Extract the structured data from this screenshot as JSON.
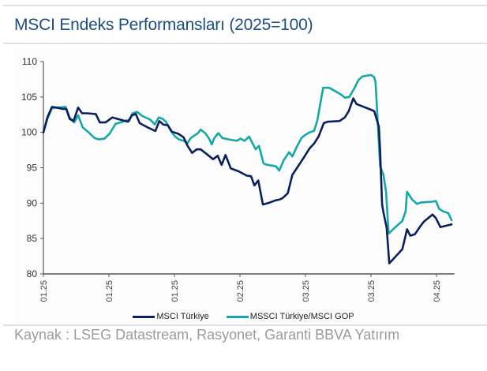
{
  "header": {
    "title": "MSCI Endeks Performansları (2025=100)"
  },
  "source": {
    "text": "Kaynak : LSEG Datastream, Rasyonet, Garanti BBVA Yatırım"
  },
  "colors": {
    "series_dark": "#0c1f5e",
    "series_teal": "#16a8a8",
    "axis": "#555555",
    "title": "#1d4d84"
  },
  "chart_data": {
    "type": "line",
    "title": "MSCI Endeks Performansları (2025=100)",
    "xlabel": "",
    "ylabel": "",
    "ylim": [
      80,
      110
    ],
    "yticks": [
      80,
      85,
      90,
      95,
      100,
      105,
      110
    ],
    "xlim": [
      0,
      6.25
    ],
    "xticks": [
      0,
      1,
      2,
      3,
      4,
      5,
      6
    ],
    "xtick_labels": [
      "01.25",
      "01.25",
      "01.25",
      "02.25",
      "03.25",
      "03.25",
      "04.25"
    ],
    "grid": false,
    "legend_position": "bottom-center",
    "series": [
      {
        "name": "MSCI Türkiye",
        "color": "#0c1f5e",
        "points": [
          [
            0.0,
            100.0
          ],
          [
            0.06,
            102.1
          ],
          [
            0.13,
            103.6
          ],
          [
            0.2,
            103.5
          ],
          [
            0.3,
            103.3
          ],
          [
            0.35,
            103.3
          ],
          [
            0.4,
            101.9
          ],
          [
            0.46,
            101.6
          ],
          [
            0.53,
            103.5
          ],
          [
            0.59,
            102.7
          ],
          [
            0.66,
            102.7
          ],
          [
            0.8,
            102.6
          ],
          [
            0.86,
            101.4
          ],
          [
            0.95,
            101.4
          ],
          [
            1.05,
            102.1
          ],
          [
            1.17,
            101.8
          ],
          [
            1.29,
            101.5
          ],
          [
            1.35,
            102.4
          ],
          [
            1.41,
            102.6
          ],
          [
            1.47,
            101.3
          ],
          [
            1.59,
            100.7
          ],
          [
            1.71,
            100.2
          ],
          [
            1.77,
            101.6
          ],
          [
            1.83,
            101.1
          ],
          [
            1.9,
            101.0
          ],
          [
            1.96,
            100.1
          ],
          [
            2.06,
            99.8
          ],
          [
            2.14,
            99.3
          ],
          [
            2.2,
            98.1
          ],
          [
            2.27,
            97.1
          ],
          [
            2.34,
            97.6
          ],
          [
            2.4,
            97.6
          ],
          [
            2.47,
            97.1
          ],
          [
            2.59,
            96.2
          ],
          [
            2.66,
            96.7
          ],
          [
            2.72,
            95.4
          ],
          [
            2.78,
            96.8
          ],
          [
            2.86,
            94.9
          ],
          [
            2.98,
            94.5
          ],
          [
            3.1,
            93.9
          ],
          [
            3.17,
            93.8
          ],
          [
            3.22,
            92.5
          ],
          [
            3.28,
            93.2
          ],
          [
            3.35,
            89.8
          ],
          [
            3.43,
            90.0
          ],
          [
            3.55,
            90.4
          ],
          [
            3.6,
            90.5
          ],
          [
            3.65,
            90.7
          ],
          [
            3.73,
            91.4
          ],
          [
            3.8,
            94.0
          ],
          [
            3.88,
            95.1
          ],
          [
            3.98,
            96.5
          ],
          [
            4.06,
            97.7
          ],
          [
            4.13,
            98.4
          ],
          [
            4.2,
            99.4
          ],
          [
            4.28,
            101.3
          ],
          [
            4.34,
            101.5
          ],
          [
            4.52,
            101.6
          ],
          [
            4.6,
            102.1
          ],
          [
            4.66,
            103.0
          ],
          [
            4.73,
            104.8
          ],
          [
            4.78,
            104.0
          ],
          [
            5.0,
            103.2
          ],
          [
            5.05,
            103.0
          ],
          [
            5.12,
            100.8
          ],
          [
            5.14,
            97.4
          ],
          [
            5.17,
            89.8
          ],
          [
            5.19,
            88.7
          ],
          [
            5.24,
            86.5
          ],
          [
            5.28,
            81.5
          ],
          [
            5.36,
            82.3
          ],
          [
            5.48,
            83.5
          ],
          [
            5.55,
            86.3
          ],
          [
            5.6,
            85.4
          ],
          [
            5.67,
            85.6
          ],
          [
            5.75,
            86.7
          ],
          [
            5.81,
            87.4
          ],
          [
            5.94,
            88.4
          ],
          [
            5.99,
            87.9
          ],
          [
            6.06,
            86.6
          ],
          [
            6.23,
            87.0
          ]
        ]
      },
      {
        "name": "MSSCI Türkiye/MSCI GOP",
        "color": "#16a8a8",
        "points": [
          [
            0.0,
            100.0
          ],
          [
            0.06,
            101.9
          ],
          [
            0.13,
            103.4
          ],
          [
            0.2,
            103.5
          ],
          [
            0.34,
            103.6
          ],
          [
            0.4,
            102.1
          ],
          [
            0.47,
            101.4
          ],
          [
            0.53,
            102.4
          ],
          [
            0.6,
            100.7
          ],
          [
            0.69,
            100.0
          ],
          [
            0.78,
            99.2
          ],
          [
            0.84,
            99.0
          ],
          [
            0.93,
            99.1
          ],
          [
            1.01,
            99.8
          ],
          [
            1.1,
            101.2
          ],
          [
            1.18,
            101.4
          ],
          [
            1.27,
            101.7
          ],
          [
            1.31,
            101.6
          ],
          [
            1.36,
            102.7
          ],
          [
            1.43,
            102.9
          ],
          [
            1.51,
            102.3
          ],
          [
            1.63,
            101.8
          ],
          [
            1.7,
            101.1
          ],
          [
            1.76,
            102.1
          ],
          [
            1.82,
            101.9
          ],
          [
            1.87,
            101.5
          ],
          [
            1.94,
            100.3
          ],
          [
            2.01,
            99.4
          ],
          [
            2.07,
            99.0
          ],
          [
            2.14,
            98.8
          ],
          [
            2.2,
            98.5
          ],
          [
            2.25,
            99.2
          ],
          [
            2.36,
            99.9
          ],
          [
            2.4,
            100.4
          ],
          [
            2.47,
            99.9
          ],
          [
            2.53,
            99.1
          ],
          [
            2.57,
            98.3
          ],
          [
            2.61,
            99.2
          ],
          [
            2.67,
            99.9
          ],
          [
            2.73,
            99.2
          ],
          [
            2.83,
            99.0
          ],
          [
            2.95,
            98.8
          ],
          [
            3.01,
            99.1
          ],
          [
            3.07,
            98.8
          ],
          [
            3.14,
            99.4
          ],
          [
            3.19,
            98.5
          ],
          [
            3.24,
            97.6
          ],
          [
            3.29,
            98.1
          ],
          [
            3.36,
            95.6
          ],
          [
            3.42,
            95.4
          ],
          [
            3.49,
            95.3
          ],
          [
            3.55,
            95.2
          ],
          [
            3.6,
            94.6
          ],
          [
            3.67,
            96.1
          ],
          [
            3.75,
            97.2
          ],
          [
            3.8,
            96.6
          ],
          [
            3.87,
            98.0
          ],
          [
            3.94,
            99.2
          ],
          [
            3.99,
            99.6
          ],
          [
            4.06,
            100.0
          ],
          [
            4.13,
            100.2
          ],
          [
            4.18,
            101.6
          ],
          [
            4.27,
            106.3
          ],
          [
            4.36,
            106.3
          ],
          [
            4.46,
            105.8
          ],
          [
            4.55,
            105.3
          ],
          [
            4.6,
            104.9
          ],
          [
            4.67,
            105.0
          ],
          [
            4.75,
            106.3
          ],
          [
            4.81,
            107.4
          ],
          [
            4.87,
            107.9
          ],
          [
            5.0,
            108.1
          ],
          [
            5.05,
            107.8
          ],
          [
            5.07,
            107.1
          ],
          [
            5.12,
            98.5
          ],
          [
            5.14,
            95.2
          ],
          [
            5.19,
            94.0
          ],
          [
            5.23,
            91.6
          ],
          [
            5.27,
            85.7
          ],
          [
            5.36,
            86.5
          ],
          [
            5.48,
            87.5
          ],
          [
            5.53,
            88.9
          ],
          [
            5.55,
            91.6
          ],
          [
            5.63,
            90.5
          ],
          [
            5.7,
            89.9
          ],
          [
            5.77,
            90.1
          ],
          [
            5.94,
            90.2
          ],
          [
            5.99,
            90.3
          ],
          [
            6.04,
            89.2
          ],
          [
            6.11,
            88.8
          ],
          [
            6.18,
            88.6
          ],
          [
            6.23,
            87.6
          ]
        ]
      }
    ]
  }
}
